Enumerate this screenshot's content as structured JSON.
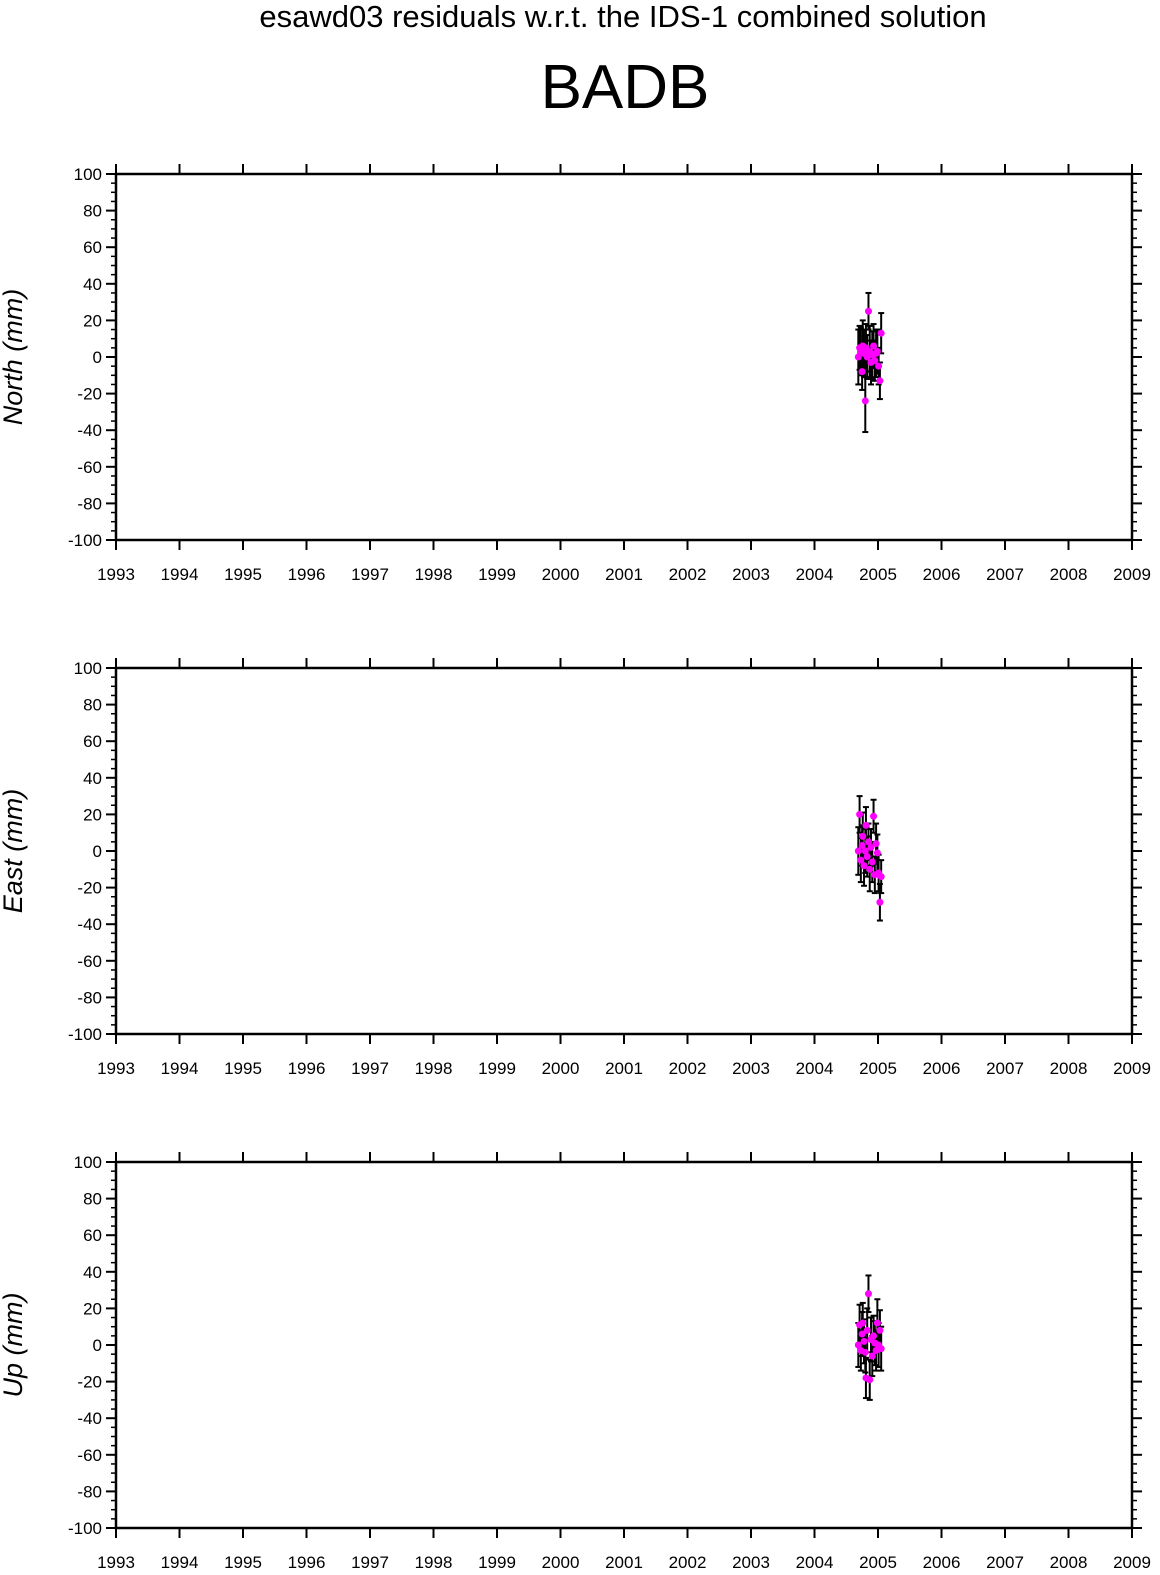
{
  "suptitle": "esawd03 residuals w.r.t. the IDS-1 combined solution",
  "title": "BADB",
  "colors": {
    "marker": "#ff00ff",
    "errorbar": "#000000",
    "axes": "#000000"
  },
  "chart_data": [
    {
      "type": "scatter",
      "ylabel": "North (mm)",
      "xlim": [
        1993,
        2009
      ],
      "ylim": [
        -100,
        100
      ],
      "xticks": [
        "1993",
        "1994",
        "1995",
        "1996",
        "1997",
        "1998",
        "1999",
        "2000",
        "2001",
        "2002",
        "2003",
        "2004",
        "2005",
        "2006",
        "2007",
        "2008",
        "2009"
      ],
      "yticks": [
        "100",
        "80",
        "60",
        "40",
        "20",
        "0",
        "-20",
        "-40",
        "-60",
        "-80",
        "-100"
      ],
      "grid": false,
      "series": [
        {
          "x": [
            2004.69,
            2004.71,
            2004.73,
            2004.75,
            2004.76,
            2004.78,
            2004.8,
            2004.81,
            2004.83,
            2004.85,
            2004.87,
            2004.89,
            2004.91,
            2004.93,
            2004.95,
            2004.97,
            2004.99,
            2005.01,
            2005.03,
            2005.05
          ],
          "y": [
            0,
            5,
            3,
            -8,
            6,
            2,
            -24,
            5,
            0,
            25,
            3,
            -3,
            1,
            6,
            -2,
            2,
            3,
            -5,
            -13,
            13
          ],
          "err": [
            15,
            12,
            13,
            10,
            14,
            13,
            17,
            13,
            12,
            10,
            14,
            12,
            13,
            12,
            11,
            13,
            12,
            10,
            10,
            11
          ]
        }
      ]
    },
    {
      "type": "scatter",
      "ylabel": "East (mm)",
      "xlim": [
        1993,
        2009
      ],
      "ylim": [
        -100,
        100
      ],
      "xticks": [
        "1993",
        "1994",
        "1995",
        "1996",
        "1997",
        "1998",
        "1999",
        "2000",
        "2001",
        "2002",
        "2003",
        "2004",
        "2005",
        "2006",
        "2007",
        "2008",
        "2009"
      ],
      "yticks": [
        "100",
        "80",
        "60",
        "40",
        "20",
        "0",
        "-20",
        "-40",
        "-60",
        "-80",
        "-100"
      ],
      "grid": false,
      "series": [
        {
          "x": [
            2004.69,
            2004.71,
            2004.73,
            2004.75,
            2004.76,
            2004.78,
            2004.8,
            2004.81,
            2004.83,
            2004.85,
            2004.87,
            2004.89,
            2004.91,
            2004.93,
            2004.95,
            2004.97,
            2004.99,
            2005.01,
            2005.03,
            2005.05
          ],
          "y": [
            0,
            20,
            -5,
            3,
            8,
            -8,
            0,
            14,
            -3,
            5,
            -10,
            2,
            -6,
            19,
            -13,
            4,
            -1,
            -12,
            -28,
            -14
          ],
          "err": [
            13,
            10,
            12,
            11,
            13,
            11,
            12,
            10,
            11,
            10,
            12,
            10,
            11,
            9,
            10,
            11,
            10,
            10,
            10,
            9
          ]
        }
      ]
    },
    {
      "type": "scatter",
      "ylabel": "Up (mm)",
      "xlim": [
        1993,
        2009
      ],
      "ylim": [
        -100,
        100
      ],
      "xticks": [
        "1993",
        "1994",
        "1995",
        "1996",
        "1997",
        "1998",
        "1999",
        "2000",
        "2001",
        "2002",
        "2003",
        "2004",
        "2005",
        "2006",
        "2007",
        "2008",
        "2009"
      ],
      "yticks": [
        "100",
        "80",
        "60",
        "40",
        "20",
        "0",
        "-20",
        "-40",
        "-60",
        "-80",
        "-100"
      ],
      "grid": false,
      "series": [
        {
          "x": [
            2004.69,
            2004.71,
            2004.73,
            2004.75,
            2004.76,
            2004.78,
            2004.8,
            2004.81,
            2004.83,
            2004.85,
            2004.87,
            2004.89,
            2004.91,
            2004.93,
            2004.95,
            2004.97,
            2004.99,
            2005.01,
            2005.03,
            2005.05
          ],
          "y": [
            0,
            11,
            -3,
            6,
            12,
            2,
            -4,
            -18,
            8,
            28,
            -19,
            3,
            -6,
            5,
            1,
            -3,
            12,
            0,
            8,
            -2
          ],
          "err": [
            12,
            11,
            11,
            12,
            11,
            12,
            11,
            11,
            12,
            10,
            11,
            12,
            11,
            11,
            12,
            11,
            13,
            12,
            11,
            12
          ]
        }
      ]
    }
  ]
}
